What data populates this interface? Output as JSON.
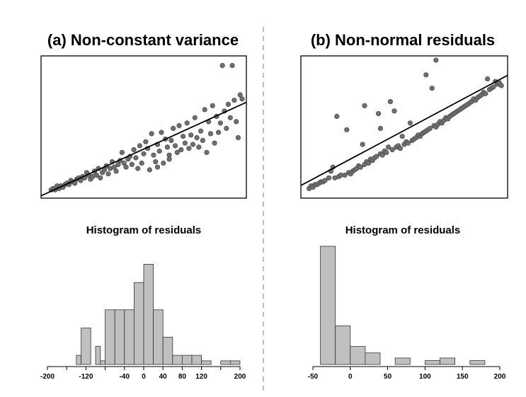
{
  "chart_data": [
    {
      "type": "scatter",
      "title": "(a) Non-constant variance",
      "xlabel": "",
      "ylabel": "",
      "axes_ticks_shown": false,
      "xlim": [
        0,
        100
      ],
      "ylim": [
        0,
        100
      ],
      "fit_line": [
        [
          0,
          0
        ],
        [
          100,
          67
        ]
      ],
      "points": [
        [
          3,
          3
        ],
        [
          4,
          4
        ],
        [
          5,
          3
        ],
        [
          6,
          6
        ],
        [
          7,
          4
        ],
        [
          8,
          6
        ],
        [
          9,
          5
        ],
        [
          10,
          7
        ],
        [
          11,
          8
        ],
        [
          12,
          7
        ],
        [
          13,
          10
        ],
        [
          14,
          9
        ],
        [
          15,
          8
        ],
        [
          16,
          11
        ],
        [
          17,
          12
        ],
        [
          18,
          10
        ],
        [
          19,
          13
        ],
        [
          20,
          12
        ],
        [
          21,
          16
        ],
        [
          22,
          14
        ],
        [
          23,
          11
        ],
        [
          24,
          13
        ],
        [
          25,
          17
        ],
        [
          26,
          14
        ],
        [
          27,
          19
        ],
        [
          28,
          12
        ],
        [
          29,
          16
        ],
        [
          30,
          18
        ],
        [
          31,
          21
        ],
        [
          32,
          15
        ],
        [
          33,
          19
        ],
        [
          34,
          24
        ],
        [
          35,
          20
        ],
        [
          36,
          17
        ],
        [
          37,
          22
        ],
        [
          38,
          25
        ],
        [
          39,
          31
        ],
        [
          40,
          23
        ],
        [
          41,
          20
        ],
        [
          42,
          26
        ],
        [
          43,
          28
        ],
        [
          44,
          22
        ],
        [
          45,
          33
        ],
        [
          46,
          27
        ],
        [
          47,
          19
        ],
        [
          48,
          36
        ],
        [
          49,
          23
        ],
        [
          50,
          30
        ],
        [
          51,
          39
        ],
        [
          52,
          34
        ],
        [
          53,
          18
        ],
        [
          54,
          45
        ],
        [
          55,
          29
        ],
        [
          56,
          24
        ],
        [
          57,
          37
        ],
        [
          58,
          32
        ],
        [
          59,
          46
        ],
        [
          60,
          23
        ],
        [
          61,
          41
        ],
        [
          62,
          35
        ],
        [
          63,
          29
        ],
        [
          64,
          40
        ],
        [
          65,
          49
        ],
        [
          66,
          36
        ],
        [
          67,
          31
        ],
        [
          68,
          51
        ],
        [
          69,
          33
        ],
        [
          70,
          43
        ],
        [
          71,
          38
        ],
        [
          72,
          53
        ],
        [
          73,
          34
        ],
        [
          74,
          44
        ],
        [
          75,
          37
        ],
        [
          76,
          57
        ],
        [
          77,
          42
        ],
        [
          78,
          35
        ],
        [
          79,
          47
        ],
        [
          80,
          40
        ],
        [
          81,
          63
        ],
        [
          82,
          31
        ],
        [
          83,
          54
        ],
        [
          84,
          45
        ],
        [
          85,
          66
        ],
        [
          86,
          38
        ],
        [
          87,
          58
        ],
        [
          88,
          46
        ],
        [
          89,
          53
        ],
        [
          90,
          96
        ],
        [
          91,
          62
        ],
        [
          92,
          49
        ],
        [
          93,
          67
        ],
        [
          94,
          57
        ],
        [
          95,
          96
        ],
        [
          96,
          70
        ],
        [
          97,
          54
        ],
        [
          98,
          42
        ],
        [
          99,
          74
        ],
        [
          100,
          71
        ],
        [
          63,
          26
        ],
        [
          57,
          20
        ]
      ]
    },
    {
      "type": "scatter",
      "title": "(b) Non-normal residuals",
      "xlabel": "",
      "ylabel": "",
      "axes_ticks_shown": false,
      "xlim": [
        0,
        100
      ],
      "ylim": [
        0,
        100
      ],
      "fit_line": [
        [
          0,
          8
        ],
        [
          100,
          87
        ]
      ],
      "points": [
        [
          2,
          4
        ],
        [
          3,
          6
        ],
        [
          4,
          5
        ],
        [
          5,
          7
        ],
        [
          6,
          7
        ],
        [
          7,
          8
        ],
        [
          8,
          9
        ],
        [
          9,
          9
        ],
        [
          10,
          10
        ],
        [
          12,
          12
        ],
        [
          13,
          17
        ],
        [
          14,
          20
        ],
        [
          15,
          12
        ],
        [
          16,
          58
        ],
        [
          17,
          13
        ],
        [
          18,
          14
        ],
        [
          20,
          14
        ],
        [
          21,
          48
        ],
        [
          22,
          16
        ],
        [
          23,
          15
        ],
        [
          24,
          17
        ],
        [
          25,
          18
        ],
        [
          26,
          19
        ],
        [
          27,
          21
        ],
        [
          28,
          20
        ],
        [
          29,
          37
        ],
        [
          30,
          22
        ],
        [
          31,
          24
        ],
        [
          32,
          23
        ],
        [
          33,
          26
        ],
        [
          34,
          25
        ],
        [
          35,
          27
        ],
        [
          36,
          28
        ],
        [
          37,
          60
        ],
        [
          38,
          30
        ],
        [
          38,
          49
        ],
        [
          39,
          29
        ],
        [
          40,
          32
        ],
        [
          41,
          31
        ],
        [
          42,
          35
        ],
        [
          43,
          69
        ],
        [
          44,
          33
        ],
        [
          45,
          62
        ],
        [
          46,
          35
        ],
        [
          47,
          36
        ],
        [
          48,
          34
        ],
        [
          49,
          43
        ],
        [
          50,
          37
        ],
        [
          51,
          39
        ],
        [
          52,
          38
        ],
        [
          53,
          53
        ],
        [
          54,
          40
        ],
        [
          55,
          41
        ],
        [
          56,
          42
        ],
        [
          57,
          44
        ],
        [
          58,
          43
        ],
        [
          59,
          45
        ],
        [
          60,
          46
        ],
        [
          61,
          47
        ],
        [
          62,
          48
        ],
        [
          63,
          49
        ],
        [
          64,
          79
        ],
        [
          65,
          51
        ],
        [
          66,
          50
        ],
        [
          67,
          52
        ],
        [
          68,
          54
        ],
        [
          69,
          53
        ],
        [
          70,
          55
        ],
        [
          71,
          57
        ],
        [
          72,
          56
        ],
        [
          73,
          58
        ],
        [
          74,
          59
        ],
        [
          75,
          60
        ],
        [
          76,
          61
        ],
        [
          77,
          62
        ],
        [
          78,
          63
        ],
        [
          79,
          64
        ],
        [
          80,
          65
        ],
        [
          81,
          66
        ],
        [
          82,
          67
        ],
        [
          83,
          68
        ],
        [
          84,
          69
        ],
        [
          85,
          71
        ],
        [
          86,
          70
        ],
        [
          87,
          72
        ],
        [
          88,
          73
        ],
        [
          89,
          74
        ],
        [
          90,
          76
        ],
        [
          91,
          75
        ],
        [
          92,
          86
        ],
        [
          93,
          78
        ],
        [
          94,
          79
        ],
        [
          95,
          80
        ],
        [
          96,
          84
        ],
        [
          97,
          82
        ],
        [
          98,
          83
        ],
        [
          99,
          81
        ],
        [
          66,
          100
        ],
        [
          61,
          89
        ],
        [
          30,
          66
        ]
      ]
    },
    {
      "type": "bar",
      "subtype": "histogram",
      "title": "Histogram of residuals",
      "xlabel": "",
      "ylabel": "",
      "xlim": [
        -200,
        200
      ],
      "x_tick_values": [
        -200,
        -160,
        -120,
        -80,
        -40,
        0,
        40,
        80,
        120,
        160,
        200
      ],
      "x_tick_labels": [
        "-200",
        "",
        "-120",
        "",
        "-40",
        "0",
        "40",
        "80",
        "120",
        "",
        "200"
      ],
      "bins": [
        [
          -140,
          -130,
          1
        ],
        [
          -130,
          -110,
          4
        ],
        [
          -110,
          -100,
          0
        ],
        [
          -100,
          -90,
          2
        ],
        [
          -90,
          -80,
          0.4
        ],
        [
          -80,
          -60,
          6
        ],
        [
          -60,
          -40,
          6
        ],
        [
          -40,
          -20,
          6
        ],
        [
          -20,
          0,
          9
        ],
        [
          0,
          20,
          11
        ],
        [
          20,
          40,
          6
        ],
        [
          40,
          60,
          3
        ],
        [
          60,
          80,
          1
        ],
        [
          80,
          100,
          1
        ],
        [
          100,
          120,
          1
        ],
        [
          120,
          140,
          0.4
        ],
        [
          160,
          180,
          0.4
        ],
        [
          180,
          200,
          0.4
        ]
      ],
      "ylim": [
        0,
        11.5
      ]
    },
    {
      "type": "bar",
      "subtype": "histogram",
      "title": "Histogram of residuals",
      "xlabel": "",
      "ylabel": "",
      "xlim": [
        -50,
        200
      ],
      "x_tick_values": [
        -50,
        0,
        50,
        100,
        150,
        200
      ],
      "x_tick_labels": [
        "-50",
        "0",
        "50",
        "100",
        "150",
        "200"
      ],
      "bins": [
        [
          -40,
          -20,
          46
        ],
        [
          -20,
          0,
          15
        ],
        [
          0,
          20,
          7
        ],
        [
          20,
          40,
          4.5
        ],
        [
          40,
          60,
          0
        ],
        [
          60,
          80,
          2.5
        ],
        [
          80,
          100,
          0
        ],
        [
          100,
          120,
          1.5
        ],
        [
          120,
          140,
          2.5
        ],
        [
          140,
          160,
          0
        ],
        [
          160,
          180,
          1.5
        ]
      ],
      "ylim": [
        0,
        46
      ]
    }
  ]
}
